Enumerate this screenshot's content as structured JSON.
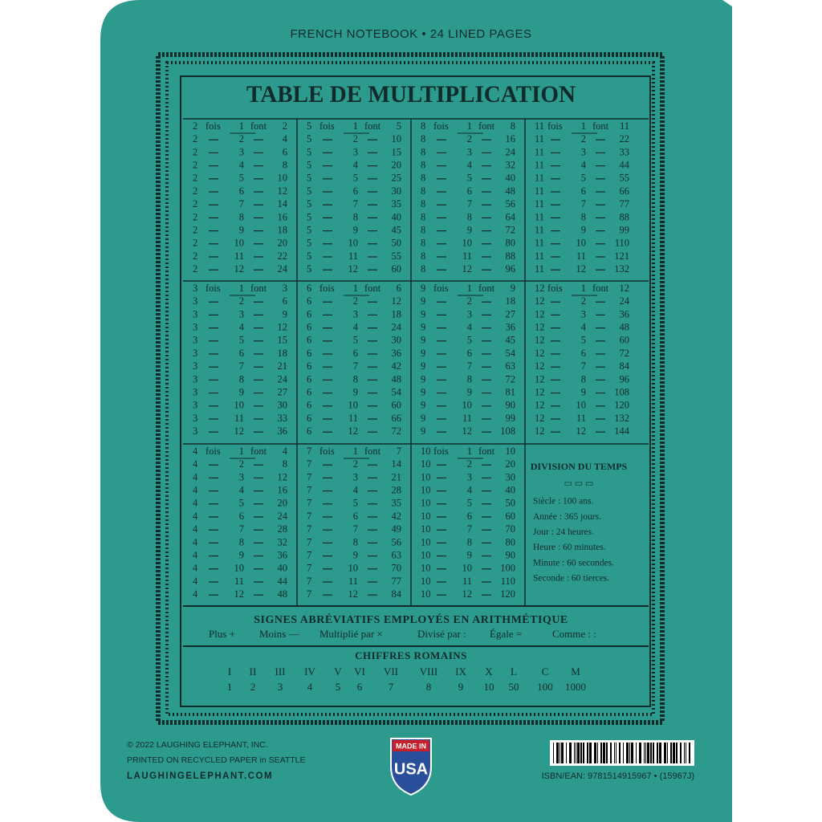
{
  "header": {
    "subtitle": "FRENCH NOTEBOOK • 24 LINED PAGES"
  },
  "table": {
    "title": "TABLE DE MULTIPLICATION",
    "fois": "fois",
    "font": "font",
    "blocks": [
      {
        "rows": [
          [
            2,
            1,
            2
          ],
          [
            2,
            2,
            4
          ],
          [
            2,
            3,
            6
          ],
          [
            2,
            4,
            8
          ],
          [
            2,
            5,
            10
          ],
          [
            2,
            6,
            12
          ],
          [
            2,
            7,
            14
          ],
          [
            2,
            8,
            16
          ],
          [
            2,
            9,
            18
          ],
          [
            2,
            10,
            20
          ],
          [
            2,
            11,
            22
          ],
          [
            2,
            12,
            24
          ]
        ]
      },
      {
        "rows": [
          [
            5,
            1,
            5
          ],
          [
            5,
            2,
            10
          ],
          [
            5,
            3,
            15
          ],
          [
            5,
            4,
            20
          ],
          [
            5,
            5,
            25
          ],
          [
            5,
            6,
            30
          ],
          [
            5,
            7,
            35
          ],
          [
            5,
            8,
            40
          ],
          [
            5,
            9,
            45
          ],
          [
            5,
            10,
            50
          ],
          [
            5,
            11,
            55
          ],
          [
            5,
            12,
            60
          ]
        ]
      },
      {
        "rows": [
          [
            8,
            1,
            8
          ],
          [
            8,
            2,
            16
          ],
          [
            8,
            3,
            24
          ],
          [
            8,
            4,
            32
          ],
          [
            8,
            5,
            40
          ],
          [
            8,
            6,
            48
          ],
          [
            8,
            7,
            56
          ],
          [
            8,
            8,
            64
          ],
          [
            8,
            9,
            72
          ],
          [
            8,
            10,
            80
          ],
          [
            8,
            11,
            88
          ],
          [
            8,
            12,
            96
          ]
        ]
      },
      {
        "rows": [
          [
            11,
            1,
            11
          ],
          [
            11,
            2,
            22
          ],
          [
            11,
            3,
            33
          ],
          [
            11,
            4,
            44
          ],
          [
            11,
            5,
            55
          ],
          [
            11,
            6,
            66
          ],
          [
            11,
            7,
            77
          ],
          [
            11,
            8,
            88
          ],
          [
            11,
            9,
            99
          ],
          [
            11,
            10,
            110
          ],
          [
            11,
            11,
            121
          ],
          [
            11,
            12,
            132
          ]
        ]
      },
      {
        "rows": [
          [
            3,
            1,
            3
          ],
          [
            3,
            2,
            6
          ],
          [
            3,
            3,
            9
          ],
          [
            3,
            4,
            12
          ],
          [
            3,
            5,
            15
          ],
          [
            3,
            6,
            18
          ],
          [
            3,
            7,
            21
          ],
          [
            3,
            8,
            24
          ],
          [
            3,
            9,
            27
          ],
          [
            3,
            10,
            30
          ],
          [
            3,
            11,
            33
          ],
          [
            3,
            12,
            36
          ]
        ]
      },
      {
        "rows": [
          [
            6,
            1,
            6
          ],
          [
            6,
            2,
            12
          ],
          [
            6,
            3,
            18
          ],
          [
            6,
            4,
            24
          ],
          [
            6,
            5,
            30
          ],
          [
            6,
            6,
            36
          ],
          [
            6,
            7,
            42
          ],
          [
            6,
            8,
            48
          ],
          [
            6,
            9,
            54
          ],
          [
            6,
            10,
            60
          ],
          [
            6,
            11,
            66
          ],
          [
            6,
            12,
            72
          ]
        ]
      },
      {
        "rows": [
          [
            9,
            1,
            9
          ],
          [
            9,
            2,
            18
          ],
          [
            9,
            3,
            27
          ],
          [
            9,
            4,
            36
          ],
          [
            9,
            5,
            45
          ],
          [
            9,
            6,
            54
          ],
          [
            9,
            7,
            63
          ],
          [
            9,
            8,
            72
          ],
          [
            9,
            9,
            81
          ],
          [
            9,
            10,
            90
          ],
          [
            9,
            11,
            99
          ],
          [
            9,
            12,
            108
          ]
        ]
      },
      {
        "rows": [
          [
            12,
            1,
            12
          ],
          [
            12,
            2,
            24
          ],
          [
            12,
            3,
            36
          ],
          [
            12,
            4,
            48
          ],
          [
            12,
            5,
            60
          ],
          [
            12,
            6,
            72
          ],
          [
            12,
            7,
            84
          ],
          [
            12,
            8,
            96
          ],
          [
            12,
            9,
            108
          ],
          [
            12,
            10,
            120
          ],
          [
            12,
            11,
            132
          ],
          [
            12,
            12,
            144
          ]
        ]
      },
      {
        "rows": [
          [
            4,
            1,
            4
          ],
          [
            4,
            2,
            8
          ],
          [
            4,
            3,
            12
          ],
          [
            4,
            4,
            16
          ],
          [
            4,
            5,
            20
          ],
          [
            4,
            6,
            24
          ],
          [
            4,
            7,
            28
          ],
          [
            4,
            8,
            32
          ],
          [
            4,
            9,
            36
          ],
          [
            4,
            10,
            40
          ],
          [
            4,
            11,
            44
          ],
          [
            4,
            12,
            48
          ]
        ]
      },
      {
        "rows": [
          [
            7,
            1,
            7
          ],
          [
            7,
            2,
            14
          ],
          [
            7,
            3,
            21
          ],
          [
            7,
            4,
            28
          ],
          [
            7,
            5,
            35
          ],
          [
            7,
            6,
            42
          ],
          [
            7,
            7,
            49
          ],
          [
            7,
            8,
            56
          ],
          [
            7,
            9,
            63
          ],
          [
            7,
            10,
            70
          ],
          [
            7,
            11,
            77
          ],
          [
            7,
            12,
            84
          ]
        ]
      },
      {
        "rows": [
          [
            10,
            1,
            10
          ],
          [
            10,
            2,
            20
          ],
          [
            10,
            3,
            30
          ],
          [
            10,
            4,
            40
          ],
          [
            10,
            5,
            50
          ],
          [
            10,
            6,
            60
          ],
          [
            10,
            7,
            70
          ],
          [
            10,
            8,
            80
          ],
          [
            10,
            9,
            90
          ],
          [
            10,
            10,
            100
          ],
          [
            10,
            11,
            110
          ],
          [
            10,
            12,
            120
          ]
        ]
      }
    ]
  },
  "division": {
    "title": "DIVISION DU TEMPS",
    "lines": [
      "Siècle : 100 ans.",
      "Année : 365 jours.",
      "Jour : 24 heures.",
      "Heure : 60 minutes.",
      "Minute : 60 secondes.",
      "Seconde : 60 tierces."
    ]
  },
  "signes": {
    "title": "SIGNES ABRÉVIATIFS EMPLOYÉS EN ARITHMÉTIQUE",
    "items": [
      "Plus +",
      "Moins —",
      "Multiplié par ×",
      "Divisé par :",
      "Égale =",
      "Comme : :"
    ]
  },
  "chiffres": {
    "title": "CHIFFRES ROMAINS",
    "roman": [
      "I",
      "II",
      "III",
      "IV",
      "V",
      "VI",
      "VII",
      "VIII",
      "IX",
      "X",
      "L",
      "C",
      "M"
    ],
    "arabic": [
      1,
      2,
      3,
      4,
      5,
      6,
      7,
      8,
      9,
      10,
      50,
      100,
      1000
    ]
  },
  "footer": {
    "copyright": "© 2022 LAUGHING ELEPHANT, INC.",
    "printed": "PRINTED ON RECYCLED PAPER in SEATTLE",
    "website": "LAUGHINGELEPHANT.COM",
    "badge_top": "MADE IN",
    "badge_bottom": "USA",
    "isbn": "ISBN/EAN: 9781514915967 • (15967J)"
  }
}
